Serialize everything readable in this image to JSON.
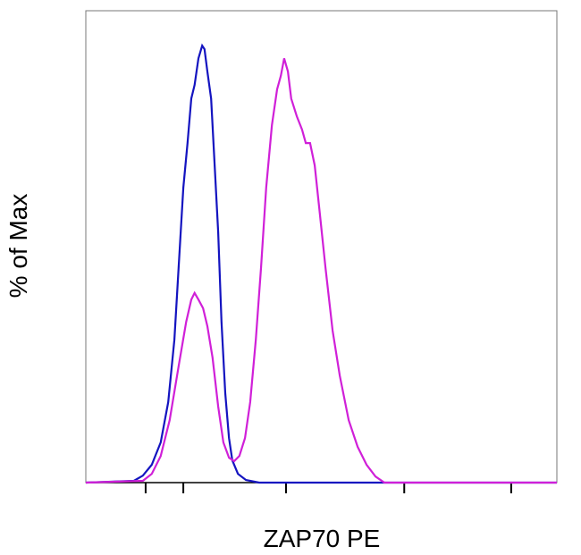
{
  "chart_data": {
    "type": "line",
    "x_label": "ZAP70 PE",
    "y_label": "% of Max",
    "xlim": [
      0,
      100
    ],
    "ylim": [
      0,
      108
    ],
    "xticks": [
      12.7,
      20.7,
      42.5,
      67.6,
      90.3
    ],
    "series": [
      {
        "color": "#1414c0",
        "x": [
          0,
          10.2,
          12.1,
          14.0,
          15.9,
          17.5,
          18.8,
          19.7,
          20.7,
          21.6,
          22.4,
          23.1,
          23.9,
          24.7,
          25.2,
          25.8,
          26.6,
          27.3,
          28.1,
          28.8,
          29.6,
          30.4,
          31.1,
          32.3,
          34.0,
          36.8,
          100
        ],
        "values": [
          0,
          0.4,
          1.6,
          4.1,
          9.2,
          18.4,
          32.7,
          49.1,
          67.5,
          77.7,
          87.9,
          91.0,
          97.1,
          100,
          99.2,
          94.1,
          87.9,
          73.6,
          57.3,
          36.8,
          20.5,
          10.2,
          5.1,
          2.0,
          0.6,
          0,
          0
        ]
      },
      {
        "color": "#d020d8",
        "x": [
          0,
          12.1,
          14.0,
          15.9,
          17.8,
          19.7,
          21.3,
          22.4,
          23.1,
          23.9,
          24.9,
          25.8,
          26.9,
          28.1,
          29.2,
          30.4,
          31.5,
          32.6,
          33.8,
          34.9,
          36.1,
          37.2,
          38.3,
          39.5,
          40.6,
          41.4,
          42.1,
          42.9,
          43.6,
          44.8,
          45.9,
          46.7,
          47.6,
          48.6,
          49.7,
          50.9,
          52.4,
          53.9,
          55.8,
          57.7,
          59.6,
          61.5,
          63.4,
          100
        ],
        "values": [
          0,
          0.4,
          2.0,
          6.1,
          14.3,
          26.6,
          36.8,
          41.9,
          43.4,
          41.9,
          39.9,
          35.8,
          28.6,
          17.4,
          9.2,
          5.7,
          4.9,
          6.1,
          10.2,
          18.4,
          32.7,
          49.1,
          67.5,
          81.8,
          90.0,
          93.1,
          97.1,
          94.1,
          87.9,
          83.8,
          80.8,
          77.7,
          77.7,
          72.6,
          61.4,
          49.1,
          34.8,
          24.5,
          14.3,
          8.2,
          4.1,
          1.4,
          0,
          0
        ]
      }
    ]
  }
}
